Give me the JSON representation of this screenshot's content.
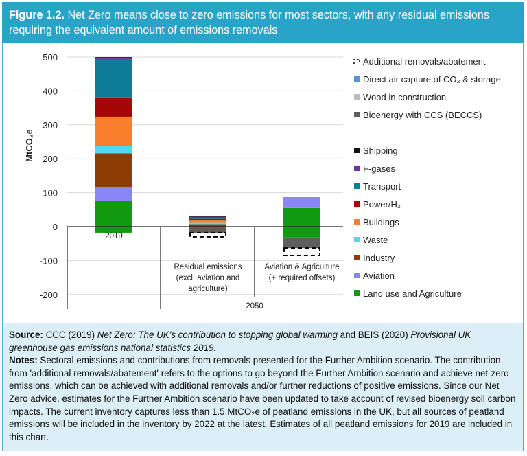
{
  "header": {
    "figure_label": "Figure 1.2.",
    "title": "Net Zero means close to zero emissions for most sectors, with any residual emissions requiring the equivalent amount of emissions removals"
  },
  "chart_data": {
    "type": "bar",
    "stacked": true,
    "ylabel": "MtCO₂e",
    "ylim": [
      -200,
      500
    ],
    "yticks": [
      -200,
      -100,
      0,
      100,
      200,
      300,
      400,
      500
    ],
    "grid": true,
    "legend_position": "right",
    "categories": [
      "2019",
      "Residual emissions (excl. aviation and agriculture)",
      "Aviation & Agriculture (+ required offsets)"
    ],
    "category_label_lines": [
      [
        "2019"
      ],
      [
        "Residual emissions",
        "(excl. aviation and",
        "agriculture)"
      ],
      [
        "Aviation & Agriculture",
        "(+ required offsets)"
      ]
    ],
    "group_labels": [
      {
        "label": "2050",
        "categories": [
          1,
          2
        ]
      }
    ],
    "series": [
      {
        "name": "Land use and Agriculture",
        "color": "#109a10",
        "values": [
          75,
          0,
          55
        ],
        "negative_values": [
          -18,
          0,
          -32
        ]
      },
      {
        "name": "Aviation",
        "color": "#8a86f7",
        "values": [
          40,
          0,
          32
        ]
      },
      {
        "name": "Industry",
        "color": "#8c3b05",
        "values": [
          101,
          7,
          0
        ]
      },
      {
        "name": "Waste",
        "color": "#4fd8f2",
        "values": [
          22,
          6,
          0
        ]
      },
      {
        "name": "Buildings",
        "color": "#fa7f2a",
        "values": [
          86,
          5,
          0
        ]
      },
      {
        "name": "Power/H₂",
        "color": "#a50606",
        "values": [
          57,
          5,
          0
        ]
      },
      {
        "name": "Transport",
        "color": "#0e7b98",
        "values": [
          113,
          3,
          0
        ]
      },
      {
        "name": "F-gases",
        "color": "#6a34a6",
        "values": [
          5,
          3,
          0
        ]
      },
      {
        "name": "Shipping",
        "color": "#111111",
        "values": [
          1,
          3,
          0
        ]
      },
      {
        "name": "Bioenergy with CCS (BECCS)",
        "color": "#5e5e5e",
        "values": [
          0,
          -18,
          -31
        ]
      },
      {
        "name": "Wood in construction",
        "color": "#bdbdbd",
        "values": [
          0,
          0,
          0
        ]
      },
      {
        "name": "Direct air capture of CO₂ & storage",
        "color": "#5b8fd6",
        "values": [
          0,
          0,
          0
        ]
      },
      {
        "name": "Additional removals/abatement",
        "color": "#000000",
        "style": "dashed-outline",
        "values": [
          0,
          -12,
          -22
        ]
      }
    ],
    "legend_order": [
      "Additional removals/abatement",
      "Direct air capture of CO₂ & storage",
      "Wood in construction",
      "Bioenergy with CCS (BECCS)",
      "",
      "Shipping",
      "F-gases",
      "Transport",
      "Power/H₂",
      "Buildings",
      "Waste",
      "Industry",
      "Aviation",
      "Land use and Agriculture"
    ]
  },
  "notes": {
    "source_label": "Source:",
    "source_pre": "CCC (2019)",
    "source_title1": "Net Zero: The UK's contribution to stopping global warming",
    "source_mid": "and BEIS (2020)",
    "source_title2": "Provisional UK greenhouse gas emissions national statistics 2019.",
    "notes_label": "Notes:",
    "notes_text": "Sectoral emissions and contributions from removals presented for the Further Ambition scenario. The contribution from 'additional removals/abatement' refers to the options to go beyond the Further Ambition scenario and achieve net-zero emissions, which can be achieved with additional removals and/or further reductions of positive emissions. Since our Net Zero advice, estimates for the Further Ambition scenario have been updated to take account of revised bioenergy soil carbon impacts. The current inventory captures less than 1.5 MtCO₂e of peatland emissions in the UK, but all sources of peatland emissions will be included in the inventory by 2022 at the latest. Estimates of all peatland emissions for 2019 are included in this chart."
  }
}
